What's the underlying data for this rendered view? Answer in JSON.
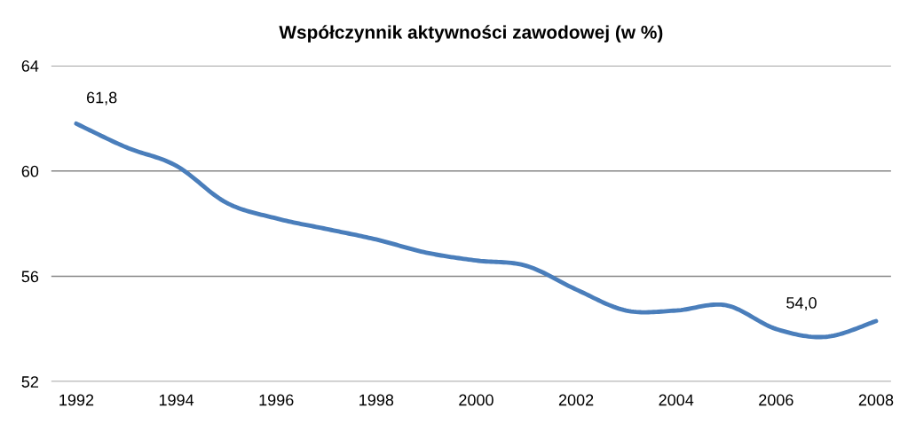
{
  "chart_data": {
    "type": "line",
    "title": "Współczynnik aktywności zawodowej (w %)",
    "x": [
      1992,
      1993,
      1994,
      1995,
      1996,
      1997,
      1998,
      1999,
      2000,
      2001,
      2002,
      2003,
      2004,
      2005,
      2006,
      2007,
      2008
    ],
    "series": [
      {
        "color": "#4a7ebb",
        "values": [
          61.8,
          60.9,
          60.2,
          58.8,
          58.2,
          57.8,
          57.4,
          56.9,
          56.6,
          56.4,
          55.5,
          54.7,
          54.7,
          54.9,
          54.0,
          53.7,
          54.3
        ],
        "value_labels": [
          "61,8",
          null,
          null,
          null,
          null,
          null,
          null,
          null,
          null,
          null,
          null,
          null,
          null,
          null,
          "54,0",
          null,
          null
        ]
      }
    ],
    "xlim": [
      1991.5,
      2008.3
    ],
    "xticks": [
      1992,
      1994,
      1996,
      1998,
      2000,
      2002,
      2004,
      2006,
      2008
    ],
    "ylim": [
      52,
      64
    ],
    "yticks": [
      52,
      56,
      60,
      64
    ],
    "grid": "y",
    "legend": false,
    "marker": "none",
    "line_style": "solid"
  }
}
